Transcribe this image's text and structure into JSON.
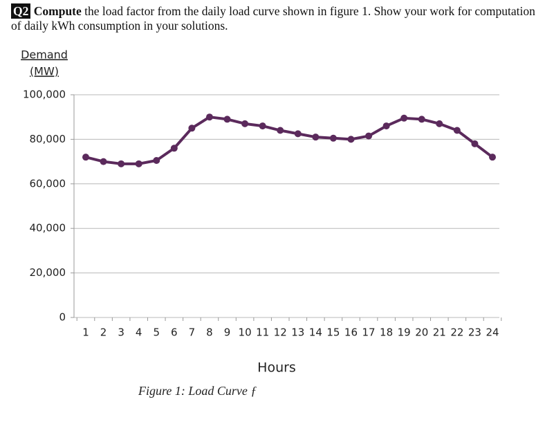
{
  "question": {
    "label": "Q2",
    "verb": "Compute",
    "text": " the load factor from the daily load curve shown in figure 1. Show your work for computation of daily kWh consumption in your solutions."
  },
  "chart_data": {
    "type": "line",
    "ylabel_lines": [
      "Demand",
      "(MW)"
    ],
    "xlabel": "Hours",
    "categories": [
      "1",
      "2",
      "3",
      "4",
      "5",
      "6",
      "7",
      "8",
      "9",
      "10",
      "11",
      "12",
      "13",
      "14",
      "15",
      "16",
      "17",
      "18",
      "19",
      "20",
      "21",
      "22",
      "23",
      "24"
    ],
    "series": [
      {
        "color": "#5b2a5c",
        "values": [
          72000,
          70000,
          69000,
          69000,
          70500,
          76000,
          85000,
          90000,
          89000,
          87000,
          86000,
          84000,
          82500,
          81000,
          80500,
          80000,
          81500,
          86000,
          89500,
          89000,
          87000,
          84000,
          78000,
          72000
        ]
      }
    ],
    "ylim": [
      0,
      100000
    ],
    "yticks": [
      0,
      {
        "value": 20000,
        "label": "20,000"
      },
      {
        "value": 40000,
        "label": "40,000"
      },
      {
        "value": 60000,
        "label": "60,000"
      },
      {
        "value": 80000,
        "label": "80,000"
      },
      {
        "value": 100000,
        "label": "100,000"
      }
    ],
    "grid": true
  },
  "caption": "Figure 1: Load Curve ƒ"
}
